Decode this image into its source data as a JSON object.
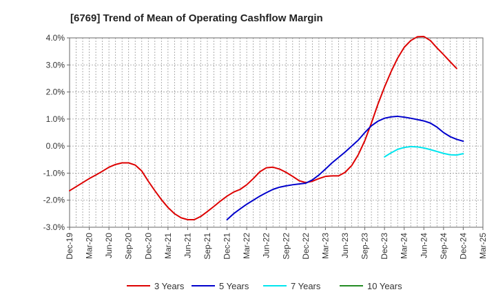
{
  "chart_data": {
    "type": "line",
    "title": "[6769]  Trend of Mean of Operating Cashflow Margin",
    "xlabel": "",
    "ylabel": "",
    "ylim": [
      -3.0,
      4.0
    ],
    "yticks": [
      -3.0,
      -2.0,
      -1.0,
      0.0,
      1.0,
      2.0,
      3.0,
      4.0
    ],
    "ytick_labels": [
      "-3.0%",
      "-2.0%",
      "-1.0%",
      "0.0%",
      "1.0%",
      "2.0%",
      "3.0%",
      "4.0%"
    ],
    "xticks": [
      "Dec-19",
      "Mar-20",
      "Jun-20",
      "Sep-20",
      "Dec-20",
      "Mar-21",
      "Jun-21",
      "Sep-21",
      "Dec-21",
      "Mar-22",
      "Jun-22",
      "Sep-22",
      "Dec-22",
      "Mar-23",
      "Jun-23",
      "Sep-23",
      "Dec-23",
      "Mar-24",
      "Jun-24",
      "Sep-24",
      "Dec-24",
      "Mar-25"
    ],
    "grid": true,
    "legend_position": "bottom",
    "series": [
      {
        "name": "3 Years",
        "color": "#dd0000",
        "start_index": 0,
        "values": [
          -1.65,
          -1.5,
          -1.35,
          -1.2,
          -1.07,
          -0.93,
          -0.78,
          -0.68,
          -0.62,
          -0.62,
          -0.7,
          -0.92,
          -1.3,
          -1.65,
          -1.98,
          -2.27,
          -2.5,
          -2.65,
          -2.72,
          -2.72,
          -2.6,
          -2.42,
          -2.23,
          -2.03,
          -1.85,
          -1.7,
          -1.6,
          -1.43,
          -1.2,
          -0.95,
          -0.8,
          -0.78,
          -0.85,
          -0.97,
          -1.12,
          -1.28,
          -1.35,
          -1.3,
          -1.2,
          -1.12,
          -1.1,
          -1.1,
          -0.97,
          -0.72,
          -0.32,
          0.2,
          0.85,
          1.55,
          2.18,
          2.75,
          3.25,
          3.65,
          3.9,
          4.04,
          4.05,
          3.9,
          3.63,
          3.38,
          3.12,
          2.87
        ]
      },
      {
        "name": "5 Years",
        "color": "#0000cc",
        "start_index": 24,
        "values": [
          -2.72,
          -2.5,
          -2.32,
          -2.15,
          -2.0,
          -1.85,
          -1.72,
          -1.6,
          -1.52,
          -1.47,
          -1.43,
          -1.4,
          -1.37,
          -1.25,
          -1.07,
          -0.85,
          -0.62,
          -0.42,
          -0.22,
          0.0,
          0.22,
          0.5,
          0.75,
          0.92,
          1.03,
          1.08,
          1.1,
          1.07,
          1.03,
          0.98,
          0.93,
          0.85,
          0.7,
          0.5,
          0.35,
          0.25,
          0.18
        ]
      },
      {
        "name": "7 Years",
        "color": "#00e5ee",
        "start_index": 48,
        "values": [
          -0.4,
          -0.25,
          -0.12,
          -0.05,
          -0.02,
          -0.03,
          -0.07,
          -0.13,
          -0.2,
          -0.27,
          -0.32,
          -0.33,
          -0.28
        ]
      },
      {
        "name": "10 Years",
        "color": "#228b22",
        "start_index": 0,
        "values": []
      }
    ]
  }
}
